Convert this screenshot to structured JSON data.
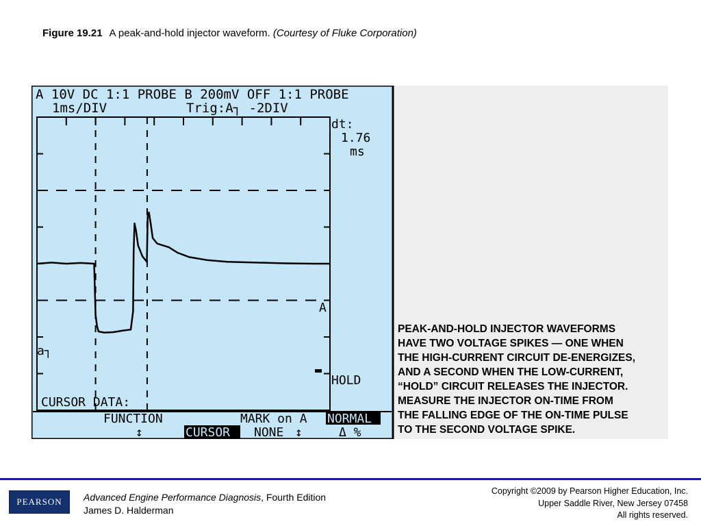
{
  "caption": {
    "figure": "Figure 19.21",
    "title": "A peak-and-hold injector waveform.",
    "courtesy": "(Courtesy of Fluke Corporation)"
  },
  "scope": {
    "header_line1": "A  10V DC  1:1 PROBE   B 200mV OFF 1:1 PROBE",
    "timebase": "1ms/DIV",
    "trigger": "Trig:A┐ -2DIV",
    "dt_label": "dt:",
    "dt_value": "1.76",
    "dt_unit": "ms",
    "trace_marker": "A",
    "ground_marker": "a┐",
    "hold": "HOLD",
    "cursor_data": "CURSOR DATA:",
    "function_label": "FUNCTION",
    "mark_label": "MARK on A",
    "normal_label": "NORMAL",
    "cursor_button": "CURSOR",
    "none_label": "NONE",
    "delta_label": "Δ  %",
    "up_down_glyph": "↕",
    "colors": {
      "screen": "#c5e6f7",
      "ink": "#000000"
    }
  },
  "chart_data": {
    "type": "line",
    "title": "",
    "xlabel": "",
    "ylabel": "",
    "x_unit": "ms",
    "y_unit": "V",
    "xlim": [
      -2,
      8
    ],
    "ylim": [
      -40,
      40
    ],
    "grid": "dashed cursor lines",
    "cursors_x": [
      0,
      1.76
    ],
    "series": [
      {
        "name": "A",
        "x": [
          -2.0,
          -1.5,
          -1.0,
          -0.5,
          -0.05,
          0.0,
          0.05,
          0.1,
          0.3,
          0.6,
          0.9,
          1.2,
          1.28,
          1.3,
          1.33,
          1.38,
          1.45,
          1.6,
          1.75,
          1.78,
          1.82,
          1.88,
          1.95,
          2.1,
          2.3,
          2.5,
          2.8,
          3.2,
          3.8,
          4.5,
          5.5,
          6.5,
          7.5,
          8.0
        ],
        "values": [
          0.0,
          0.3,
          0.0,
          0.2,
          0.0,
          -14,
          -17,
          -18.5,
          -18.8,
          -18.7,
          -18.3,
          -18.0,
          -13,
          3,
          11,
          9,
          5,
          2,
          0.5,
          13,
          14,
          11,
          7,
          5.5,
          5.0,
          4.5,
          3.0,
          1.8,
          1.0,
          0.5,
          0.3,
          0.1,
          0.0,
          0.0
        ]
      }
    ]
  },
  "callout": {
    "lines": [
      "PEAK-AND-HOLD INJECTOR WAVEFORMS",
      "HAVE TWO VOLTAGE SPIKES — ONE WHEN",
      "THE HIGH-CURRENT CIRCUIT DE-ENERGIZES,",
      "AND A SECOND WHEN THE LOW-CURRENT,",
      "“HOLD” CIRCUIT RELEASES THE INJECTOR.",
      "MEASURE THE INJECTOR ON-TIME FROM",
      "THE FALLING EDGE OF THE ON-TIME PULSE",
      "TO THE SECOND VOLTAGE SPIKE."
    ]
  },
  "footer": {
    "logo_text": "PEARSON",
    "book_title": "Advanced Engine Performance Diagnosis",
    "book_edition": ", Fourth Edition",
    "author": "James D. Halderman",
    "copyright_lines": [
      "Copyright ©2009 by Pearson Higher Education, Inc.",
      "Upper Saddle River, New Jersey 07458",
      "All rights reserved."
    ]
  }
}
